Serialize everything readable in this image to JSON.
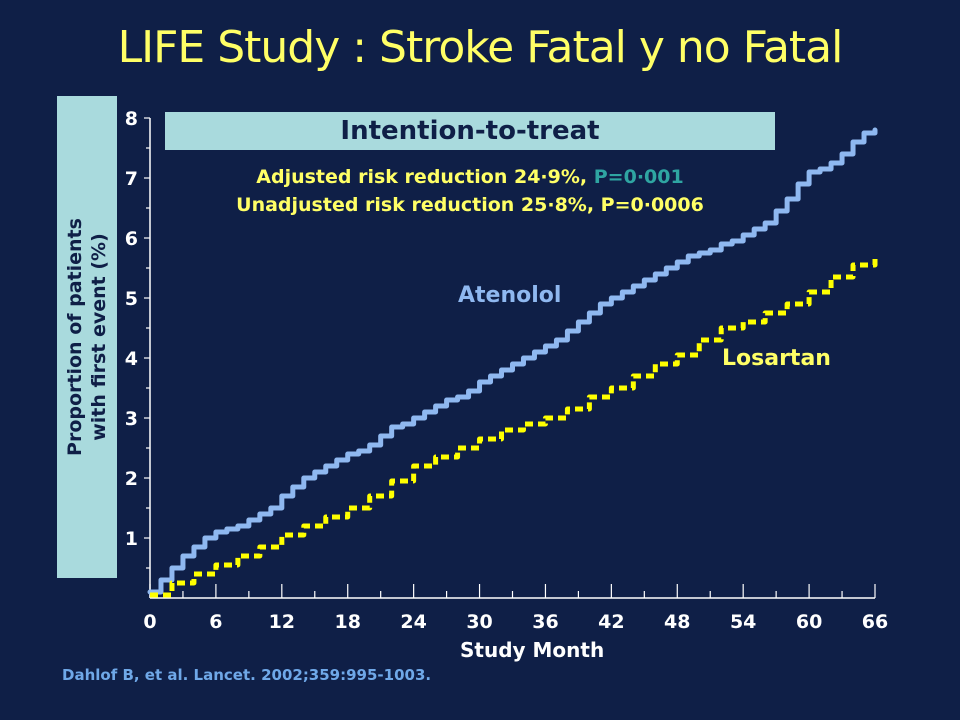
{
  "slide": {
    "title": "LIFE Study : Stroke Fatal y no Fatal",
    "citation": "Dahlof B, et al. Lancet. 2002;359:995-1003."
  },
  "annotations": {
    "box_label": "Intention-to-treat",
    "line1": "Adjusted risk reduction 24·9%, ",
    "line1_p": "P=0·001",
    "line2": "Unadjusted risk reduction 25·8%, P=0·0006"
  },
  "colors": {
    "background": "#0f1f47",
    "title": "#ffff66",
    "atenolol": "#8fb8f0",
    "losartan": "#ffff00",
    "label_box": "#a9dadd"
  },
  "chart_data": {
    "type": "line",
    "title": "LIFE Study : Stroke Fatal y no Fatal",
    "xlabel": "Study Month",
    "ylabel_line1": "Proportion of patients",
    "ylabel_line2": "with first event (%)",
    "xlim": [
      0,
      66
    ],
    "ylim": [
      0,
      8
    ],
    "xticks": [
      0,
      6,
      12,
      18,
      24,
      30,
      36,
      42,
      48,
      54,
      60,
      66
    ],
    "yticks": [
      1,
      2,
      3,
      4,
      5,
      6,
      7,
      8
    ],
    "grid": false,
    "legend": "inline labels",
    "series": [
      {
        "name": "Atenolol",
        "style": "solid",
        "x": [
          0,
          1,
          2,
          3,
          4,
          5,
          6,
          7,
          8,
          9,
          10,
          11,
          12,
          13,
          14,
          15,
          16,
          17,
          18,
          19,
          20,
          21,
          22,
          23,
          24,
          25,
          26,
          27,
          28,
          29,
          30,
          31,
          32,
          33,
          34,
          35,
          36,
          37,
          38,
          39,
          40,
          41,
          42,
          43,
          44,
          45,
          46,
          47,
          48,
          49,
          50,
          51,
          52,
          53,
          54,
          55,
          56,
          57,
          58,
          59,
          60,
          61,
          62,
          63,
          64,
          65,
          66
        ],
        "values": [
          0.1,
          0.3,
          0.5,
          0.7,
          0.85,
          1.0,
          1.1,
          1.15,
          1.2,
          1.3,
          1.4,
          1.5,
          1.7,
          1.85,
          2.0,
          2.1,
          2.2,
          2.3,
          2.4,
          2.45,
          2.55,
          2.7,
          2.85,
          2.9,
          3.0,
          3.1,
          3.2,
          3.3,
          3.35,
          3.45,
          3.6,
          3.7,
          3.8,
          3.9,
          4.0,
          4.1,
          4.2,
          4.3,
          4.45,
          4.6,
          4.75,
          4.9,
          5.0,
          5.1,
          5.2,
          5.3,
          5.4,
          5.5,
          5.6,
          5.7,
          5.75,
          5.8,
          5.9,
          5.95,
          6.05,
          6.15,
          6.25,
          6.45,
          6.65,
          6.9,
          7.1,
          7.15,
          7.25,
          7.4,
          7.6,
          7.75,
          7.8
        ]
      },
      {
        "name": "Losartan",
        "style": "dashed",
        "x": [
          0,
          2,
          4,
          6,
          8,
          10,
          12,
          14,
          16,
          18,
          20,
          22,
          24,
          26,
          28,
          30,
          32,
          34,
          36,
          38,
          40,
          42,
          44,
          46,
          48,
          50,
          52,
          54,
          56,
          58,
          60,
          62,
          64,
          66
        ],
        "values": [
          0.05,
          0.25,
          0.4,
          0.55,
          0.7,
          0.85,
          1.05,
          1.2,
          1.35,
          1.5,
          1.7,
          1.95,
          2.2,
          2.35,
          2.5,
          2.65,
          2.8,
          2.9,
          3.0,
          3.15,
          3.35,
          3.5,
          3.7,
          3.9,
          4.05,
          4.3,
          4.5,
          4.6,
          4.75,
          4.9,
          5.1,
          5.35,
          5.55,
          5.65
        ]
      }
    ]
  }
}
